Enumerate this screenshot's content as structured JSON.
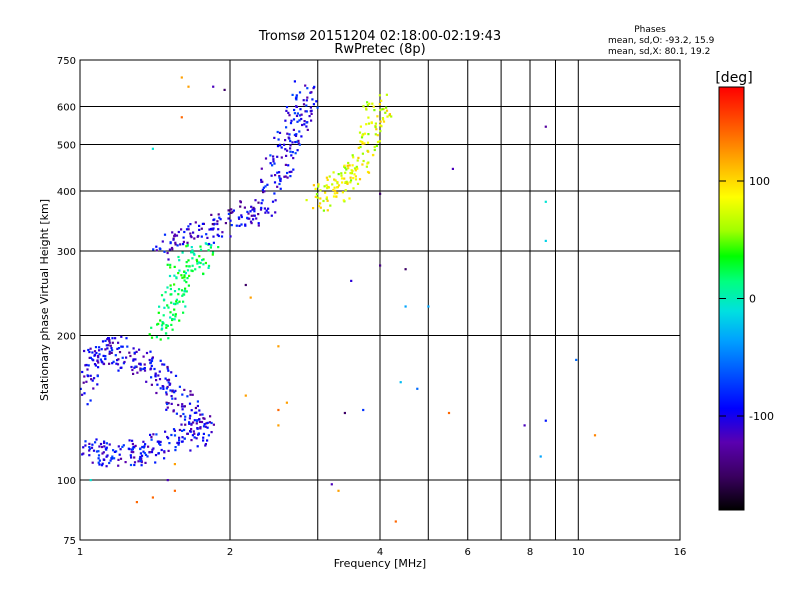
{
  "header": {
    "title_line1": "Tromsø 20151204 02:18:00-02:19:43",
    "title_line2": "RwPretec (8p)"
  },
  "legend": {
    "title": "Phases",
    "line1": "mean, sd,O: -93.2, 15.9",
    "line2": "mean, sd,X:  80.1, 19.2"
  },
  "colorbar": {
    "unit_label": "[deg]",
    "range": [
      -180,
      180
    ],
    "ticks": [
      {
        "value": 100,
        "label": "100"
      },
      {
        "value": 0,
        "label": "0"
      },
      {
        "value": -100,
        "label": "-100"
      }
    ],
    "colors": [
      "#000000",
      "#3a0060",
      "#5a00b0",
      "#0000ff",
      "#0050ff",
      "#00a0ff",
      "#00e0e0",
      "#00ff80",
      "#00ff00",
      "#a0ff00",
      "#ffff00",
      "#ffb000",
      "#ff6000",
      "#ff0000"
    ]
  },
  "chart_data": {
    "type": "scatter",
    "title": "Tromsø 20151204 02:18:00-02:19:43",
    "subtitle": "RwPretec (8p)",
    "xlabel": "Frequency [MHz]",
    "ylabel": "Stationary phase Virtual Height [km]",
    "x_scale": "log",
    "y_scale": "log",
    "xlim": [
      1,
      16
    ],
    "ylim": [
      75,
      750
    ],
    "x_ticks": [
      1,
      2,
      4,
      6,
      8,
      10,
      16
    ],
    "y_ticks": [
      75,
      100,
      200,
      300,
      400,
      500,
      600,
      750
    ],
    "x_minor_gridlines": [
      3,
      5,
      7,
      9
    ],
    "grid": true,
    "color_variable": "phase [deg]",
    "traces": [
      {
        "points": [
          [
            1.02,
            115
          ],
          [
            1.1,
            114
          ],
          [
            1.2,
            113
          ],
          [
            1.3,
            114
          ],
          [
            1.4,
            116
          ],
          [
            1.55,
            120
          ],
          [
            1.7,
            125
          ],
          [
            1.8,
            132
          ]
        ],
        "phase": -100
      },
      {
        "points": [
          [
            1.0,
            150
          ],
          [
            1.05,
            170
          ],
          [
            1.1,
            185
          ],
          [
            1.15,
            190
          ],
          [
            1.25,
            180
          ],
          [
            1.35,
            175
          ],
          [
            1.45,
            165
          ],
          [
            1.55,
            150
          ],
          [
            1.65,
            140
          ],
          [
            1.75,
            130
          ]
        ],
        "phase": -105
      },
      {
        "points": [
          [
            1.45,
            200
          ],
          [
            1.5,
            220
          ],
          [
            1.55,
            250
          ],
          [
            1.6,
            270
          ],
          [
            1.7,
            290
          ],
          [
            1.8,
            300
          ]
        ],
        "phase": 20
      },
      {
        "points": [
          [
            1.4,
            300
          ],
          [
            1.6,
            315
          ],
          [
            1.8,
            330
          ],
          [
            2.0,
            345
          ],
          [
            2.2,
            360
          ],
          [
            2.4,
            380
          ]
        ],
        "phase": -110
      },
      {
        "points": [
          [
            2.4,
            400
          ],
          [
            2.5,
            450
          ],
          [
            2.6,
            500
          ],
          [
            2.7,
            550
          ],
          [
            2.8,
            600
          ],
          [
            2.85,
            640
          ]
        ],
        "phase": -100
      },
      {
        "points": [
          [
            3.0,
            380
          ],
          [
            3.2,
            400
          ],
          [
            3.4,
            420
          ],
          [
            3.6,
            450
          ],
          [
            3.8,
            500
          ],
          [
            3.9,
            560
          ],
          [
            4.0,
            620
          ]
        ],
        "phase": 90
      }
    ],
    "isolated_points": [
      [
        1.6,
        690,
        130
      ],
      [
        1.65,
        660,
        130
      ],
      [
        1.85,
        660,
        -120
      ],
      [
        1.95,
        650,
        -150
      ],
      [
        1.4,
        490,
        -10
      ],
      [
        1.6,
        570,
        150
      ],
      [
        8.6,
        545,
        -130
      ],
      [
        5.6,
        445,
        -120
      ],
      [
        4.0,
        395,
        -150
      ],
      [
        8.6,
        380,
        -10
      ],
      [
        8.6,
        315,
        -20
      ],
      [
        4.0,
        280,
        -140
      ],
      [
        4.5,
        275,
        -150
      ],
      [
        3.5,
        260,
        -110
      ],
      [
        4.5,
        230,
        -40
      ],
      [
        5.0,
        230,
        -40
      ],
      [
        2.2,
        240,
        130
      ],
      [
        2.15,
        255,
        -150
      ],
      [
        2.5,
        190,
        130
      ],
      [
        9.9,
        178,
        -60
      ],
      [
        4.4,
        160,
        -30
      ],
      [
        4.75,
        155,
        -60
      ],
      [
        2.6,
        145,
        130
      ],
      [
        3.7,
        140,
        -80
      ],
      [
        3.4,
        138,
        -150
      ],
      [
        5.5,
        138,
        150
      ],
      [
        8.6,
        133,
        -90
      ],
      [
        7.8,
        130,
        -120
      ],
      [
        10.8,
        124,
        140
      ],
      [
        8.4,
        112,
        -40
      ],
      [
        2.15,
        150,
        130
      ],
      [
        1.55,
        108,
        130
      ],
      [
        1.05,
        100,
        -10
      ],
      [
        1.5,
        100,
        -120
      ],
      [
        1.55,
        95,
        150
      ],
      [
        1.3,
        90,
        150
      ],
      [
        1.4,
        92,
        150
      ],
      [
        3.2,
        98,
        -120
      ],
      [
        3.3,
        95,
        130
      ],
      [
        4.3,
        82,
        150
      ],
      [
        2.5,
        140,
        150
      ],
      [
        2.5,
        130,
        130
      ]
    ]
  }
}
